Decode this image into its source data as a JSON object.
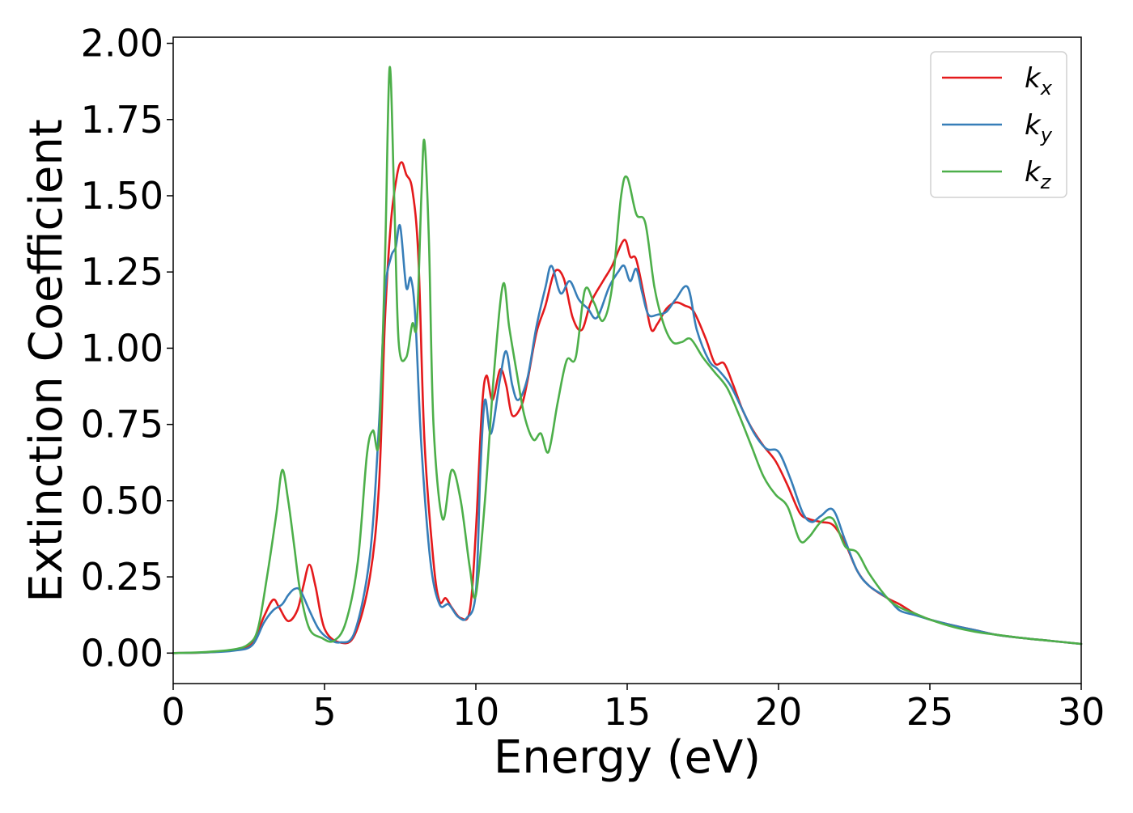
{
  "chart_data": {
    "type": "line",
    "title": "",
    "xlabel": "Energy (eV)",
    "ylabel": "Extinction Coefficient",
    "xlim": [
      0,
      30
    ],
    "ylim": [
      -0.1,
      2.02
    ],
    "xticks": [
      0,
      5,
      10,
      15,
      20,
      25,
      30
    ],
    "xtick_labels": [
      "0",
      "5",
      "10",
      "15",
      "20",
      "25",
      "30"
    ],
    "yticks": [
      0.0,
      0.25,
      0.5,
      0.75,
      1.0,
      1.25,
      1.5,
      1.75,
      2.0
    ],
    "ytick_labels": [
      "0.00",
      "0.25",
      "0.50",
      "0.75",
      "1.00",
      "1.25",
      "1.50",
      "1.75",
      "2.00"
    ],
    "grid": false,
    "legend_position": "top-right",
    "series": [
      {
        "name": "k_x",
        "legend_main": "k",
        "legend_sub": "x",
        "color": "#e41a1c",
        "points": [
          [
            0,
            0
          ],
          [
            1,
            0.002
          ],
          [
            2,
            0.01
          ],
          [
            2.6,
            0.03
          ],
          [
            3.0,
            0.12
          ],
          [
            3.3,
            0.175
          ],
          [
            3.5,
            0.15
          ],
          [
            3.8,
            0.105
          ],
          [
            4.1,
            0.14
          ],
          [
            4.3,
            0.22
          ],
          [
            4.5,
            0.29
          ],
          [
            4.7,
            0.22
          ],
          [
            5.0,
            0.08
          ],
          [
            5.5,
            0.035
          ],
          [
            6.0,
            0.06
          ],
          [
            6.5,
            0.25
          ],
          [
            6.8,
            0.55
          ],
          [
            7.0,
            1.1
          ],
          [
            7.2,
            1.42
          ],
          [
            7.4,
            1.57
          ],
          [
            7.55,
            1.61
          ],
          [
            7.7,
            1.57
          ],
          [
            7.9,
            1.52
          ],
          [
            8.1,
            1.3
          ],
          [
            8.3,
            0.7
          ],
          [
            8.6,
            0.3
          ],
          [
            8.8,
            0.17
          ],
          [
            9.0,
            0.18
          ],
          [
            9.2,
            0.15
          ],
          [
            9.5,
            0.115
          ],
          [
            9.8,
            0.14
          ],
          [
            10.0,
            0.4
          ],
          [
            10.2,
            0.8
          ],
          [
            10.35,
            0.91
          ],
          [
            10.55,
            0.83
          ],
          [
            10.8,
            0.93
          ],
          [
            11.0,
            0.88
          ],
          [
            11.2,
            0.78
          ],
          [
            11.5,
            0.81
          ],
          [
            11.7,
            0.89
          ],
          [
            12.0,
            1.05
          ],
          [
            12.3,
            1.14
          ],
          [
            12.6,
            1.25
          ],
          [
            12.9,
            1.23
          ],
          [
            13.2,
            1.1
          ],
          [
            13.5,
            1.06
          ],
          [
            13.8,
            1.15
          ],
          [
            14.2,
            1.22
          ],
          [
            14.5,
            1.27
          ],
          [
            14.9,
            1.355
          ],
          [
            15.1,
            1.3
          ],
          [
            15.3,
            1.29
          ],
          [
            15.6,
            1.15
          ],
          [
            15.8,
            1.06
          ],
          [
            16.0,
            1.08
          ],
          [
            16.3,
            1.13
          ],
          [
            16.6,
            1.15
          ],
          [
            16.9,
            1.14
          ],
          [
            17.2,
            1.12
          ],
          [
            17.6,
            1.03
          ],
          [
            17.9,
            0.95
          ],
          [
            18.2,
            0.95
          ],
          [
            18.5,
            0.88
          ],
          [
            18.8,
            0.8
          ],
          [
            19.1,
            0.74
          ],
          [
            19.5,
            0.68
          ],
          [
            19.9,
            0.63
          ],
          [
            20.3,
            0.55
          ],
          [
            20.7,
            0.46
          ],
          [
            21.0,
            0.44
          ],
          [
            21.4,
            0.43
          ],
          [
            21.8,
            0.42
          ],
          [
            22.2,
            0.36
          ],
          [
            22.6,
            0.27
          ],
          [
            23.0,
            0.22
          ],
          [
            23.6,
            0.18
          ],
          [
            24.0,
            0.16
          ],
          [
            24.5,
            0.13
          ],
          [
            25.0,
            0.11
          ],
          [
            25.8,
            0.09
          ],
          [
            26.5,
            0.075
          ],
          [
            27.2,
            0.06
          ],
          [
            28.0,
            0.05
          ],
          [
            29.0,
            0.04
          ],
          [
            30,
            0.03
          ]
        ]
      },
      {
        "name": "k_y",
        "legend_main": "k",
        "legend_sub": "y",
        "color": "#377eb8",
        "points": [
          [
            0,
            0
          ],
          [
            1,
            0.002
          ],
          [
            2,
            0.008
          ],
          [
            2.6,
            0.025
          ],
          [
            3.0,
            0.1
          ],
          [
            3.3,
            0.14
          ],
          [
            3.6,
            0.16
          ],
          [
            3.8,
            0.19
          ],
          [
            4.0,
            0.21
          ],
          [
            4.2,
            0.205
          ],
          [
            4.5,
            0.14
          ],
          [
            4.8,
            0.08
          ],
          [
            5.1,
            0.05
          ],
          [
            5.5,
            0.035
          ],
          [
            6.0,
            0.07
          ],
          [
            6.5,
            0.32
          ],
          [
            6.8,
            0.75
          ],
          [
            7.0,
            1.18
          ],
          [
            7.2,
            1.3
          ],
          [
            7.35,
            1.33
          ],
          [
            7.5,
            1.4
          ],
          [
            7.7,
            1.2
          ],
          [
            7.85,
            1.23
          ],
          [
            8.0,
            1.1
          ],
          [
            8.2,
            0.68
          ],
          [
            8.5,
            0.3
          ],
          [
            8.8,
            0.16
          ],
          [
            9.1,
            0.16
          ],
          [
            9.4,
            0.12
          ],
          [
            9.7,
            0.115
          ],
          [
            10.0,
            0.2
          ],
          [
            10.15,
            0.6
          ],
          [
            10.3,
            0.83
          ],
          [
            10.5,
            0.72
          ],
          [
            10.8,
            0.9
          ],
          [
            11.0,
            0.99
          ],
          [
            11.2,
            0.88
          ],
          [
            11.4,
            0.83
          ],
          [
            11.7,
            0.9
          ],
          [
            12.0,
            1.07
          ],
          [
            12.3,
            1.2
          ],
          [
            12.5,
            1.27
          ],
          [
            12.8,
            1.18
          ],
          [
            13.1,
            1.22
          ],
          [
            13.4,
            1.16
          ],
          [
            13.7,
            1.13
          ],
          [
            14.0,
            1.1
          ],
          [
            14.4,
            1.2
          ],
          [
            14.7,
            1.25
          ],
          [
            14.9,
            1.27
          ],
          [
            15.1,
            1.22
          ],
          [
            15.3,
            1.26
          ],
          [
            15.5,
            1.18
          ],
          [
            15.7,
            1.11
          ],
          [
            16.0,
            1.11
          ],
          [
            16.3,
            1.12
          ],
          [
            16.6,
            1.16
          ],
          [
            17.0,
            1.2
          ],
          [
            17.3,
            1.06
          ],
          [
            17.7,
            0.96
          ],
          [
            18.0,
            0.93
          ],
          [
            18.4,
            0.88
          ],
          [
            18.8,
            0.8
          ],
          [
            19.2,
            0.72
          ],
          [
            19.6,
            0.67
          ],
          [
            20.0,
            0.66
          ],
          [
            20.4,
            0.57
          ],
          [
            20.8,
            0.46
          ],
          [
            21.1,
            0.43
          ],
          [
            21.4,
            0.45
          ],
          [
            21.8,
            0.47
          ],
          [
            22.2,
            0.37
          ],
          [
            22.6,
            0.27
          ],
          [
            23.0,
            0.22
          ],
          [
            23.6,
            0.18
          ],
          [
            24.0,
            0.14
          ],
          [
            24.5,
            0.125
          ],
          [
            25.0,
            0.11
          ],
          [
            25.8,
            0.09
          ],
          [
            26.5,
            0.075
          ],
          [
            27.2,
            0.06
          ],
          [
            28.0,
            0.05
          ],
          [
            29.0,
            0.04
          ],
          [
            30,
            0.03
          ]
        ]
      },
      {
        "name": "k_z",
        "legend_main": "k",
        "legend_sub": "z",
        "color": "#4daf4a",
        "points": [
          [
            0,
            0
          ],
          [
            1,
            0.003
          ],
          [
            2,
            0.012
          ],
          [
            2.5,
            0.03
          ],
          [
            2.8,
            0.08
          ],
          [
            3.1,
            0.25
          ],
          [
            3.4,
            0.45
          ],
          [
            3.6,
            0.6
          ],
          [
            3.8,
            0.5
          ],
          [
            4.0,
            0.35
          ],
          [
            4.2,
            0.2
          ],
          [
            4.5,
            0.08
          ],
          [
            4.9,
            0.05
          ],
          [
            5.3,
            0.04
          ],
          [
            5.7,
            0.1
          ],
          [
            6.1,
            0.3
          ],
          [
            6.4,
            0.65
          ],
          [
            6.6,
            0.73
          ],
          [
            6.8,
            0.7
          ],
          [
            7.0,
            1.3
          ],
          [
            7.15,
            1.92
          ],
          [
            7.3,
            1.5
          ],
          [
            7.45,
            1.02
          ],
          [
            7.7,
            0.97
          ],
          [
            7.9,
            1.08
          ],
          [
            8.05,
            1.08
          ],
          [
            8.2,
            1.5
          ],
          [
            8.3,
            1.68
          ],
          [
            8.45,
            1.35
          ],
          [
            8.6,
            0.75
          ],
          [
            8.9,
            0.44
          ],
          [
            9.2,
            0.6
          ],
          [
            9.5,
            0.5
          ],
          [
            9.8,
            0.28
          ],
          [
            10.0,
            0.19
          ],
          [
            10.3,
            0.5
          ],
          [
            10.6,
            0.92
          ],
          [
            10.9,
            1.21
          ],
          [
            11.1,
            1.07
          ],
          [
            11.35,
            0.92
          ],
          [
            11.6,
            0.78
          ],
          [
            11.9,
            0.7
          ],
          [
            12.15,
            0.72
          ],
          [
            12.4,
            0.66
          ],
          [
            12.7,
            0.82
          ],
          [
            13.0,
            0.96
          ],
          [
            13.3,
            0.97
          ],
          [
            13.6,
            1.19
          ],
          [
            13.9,
            1.15
          ],
          [
            14.2,
            1.09
          ],
          [
            14.5,
            1.2
          ],
          [
            14.8,
            1.5
          ],
          [
            15.0,
            1.56
          ],
          [
            15.3,
            1.44
          ],
          [
            15.6,
            1.41
          ],
          [
            15.9,
            1.2
          ],
          [
            16.2,
            1.08
          ],
          [
            16.5,
            1.02
          ],
          [
            16.8,
            1.02
          ],
          [
            17.1,
            1.03
          ],
          [
            17.5,
            0.97
          ],
          [
            17.9,
            0.92
          ],
          [
            18.3,
            0.87
          ],
          [
            18.7,
            0.78
          ],
          [
            19.1,
            0.68
          ],
          [
            19.5,
            0.58
          ],
          [
            19.9,
            0.52
          ],
          [
            20.3,
            0.48
          ],
          [
            20.7,
            0.37
          ],
          [
            21.0,
            0.38
          ],
          [
            21.4,
            0.43
          ],
          [
            21.8,
            0.44
          ],
          [
            22.2,
            0.35
          ],
          [
            22.6,
            0.33
          ],
          [
            23.0,
            0.26
          ],
          [
            23.6,
            0.18
          ],
          [
            24.0,
            0.15
          ],
          [
            24.5,
            0.13
          ],
          [
            25.0,
            0.11
          ],
          [
            25.8,
            0.085
          ],
          [
            26.5,
            0.07
          ],
          [
            27.2,
            0.06
          ],
          [
            28.0,
            0.05
          ],
          [
            29.0,
            0.04
          ],
          [
            30,
            0.03
          ]
        ]
      }
    ]
  }
}
